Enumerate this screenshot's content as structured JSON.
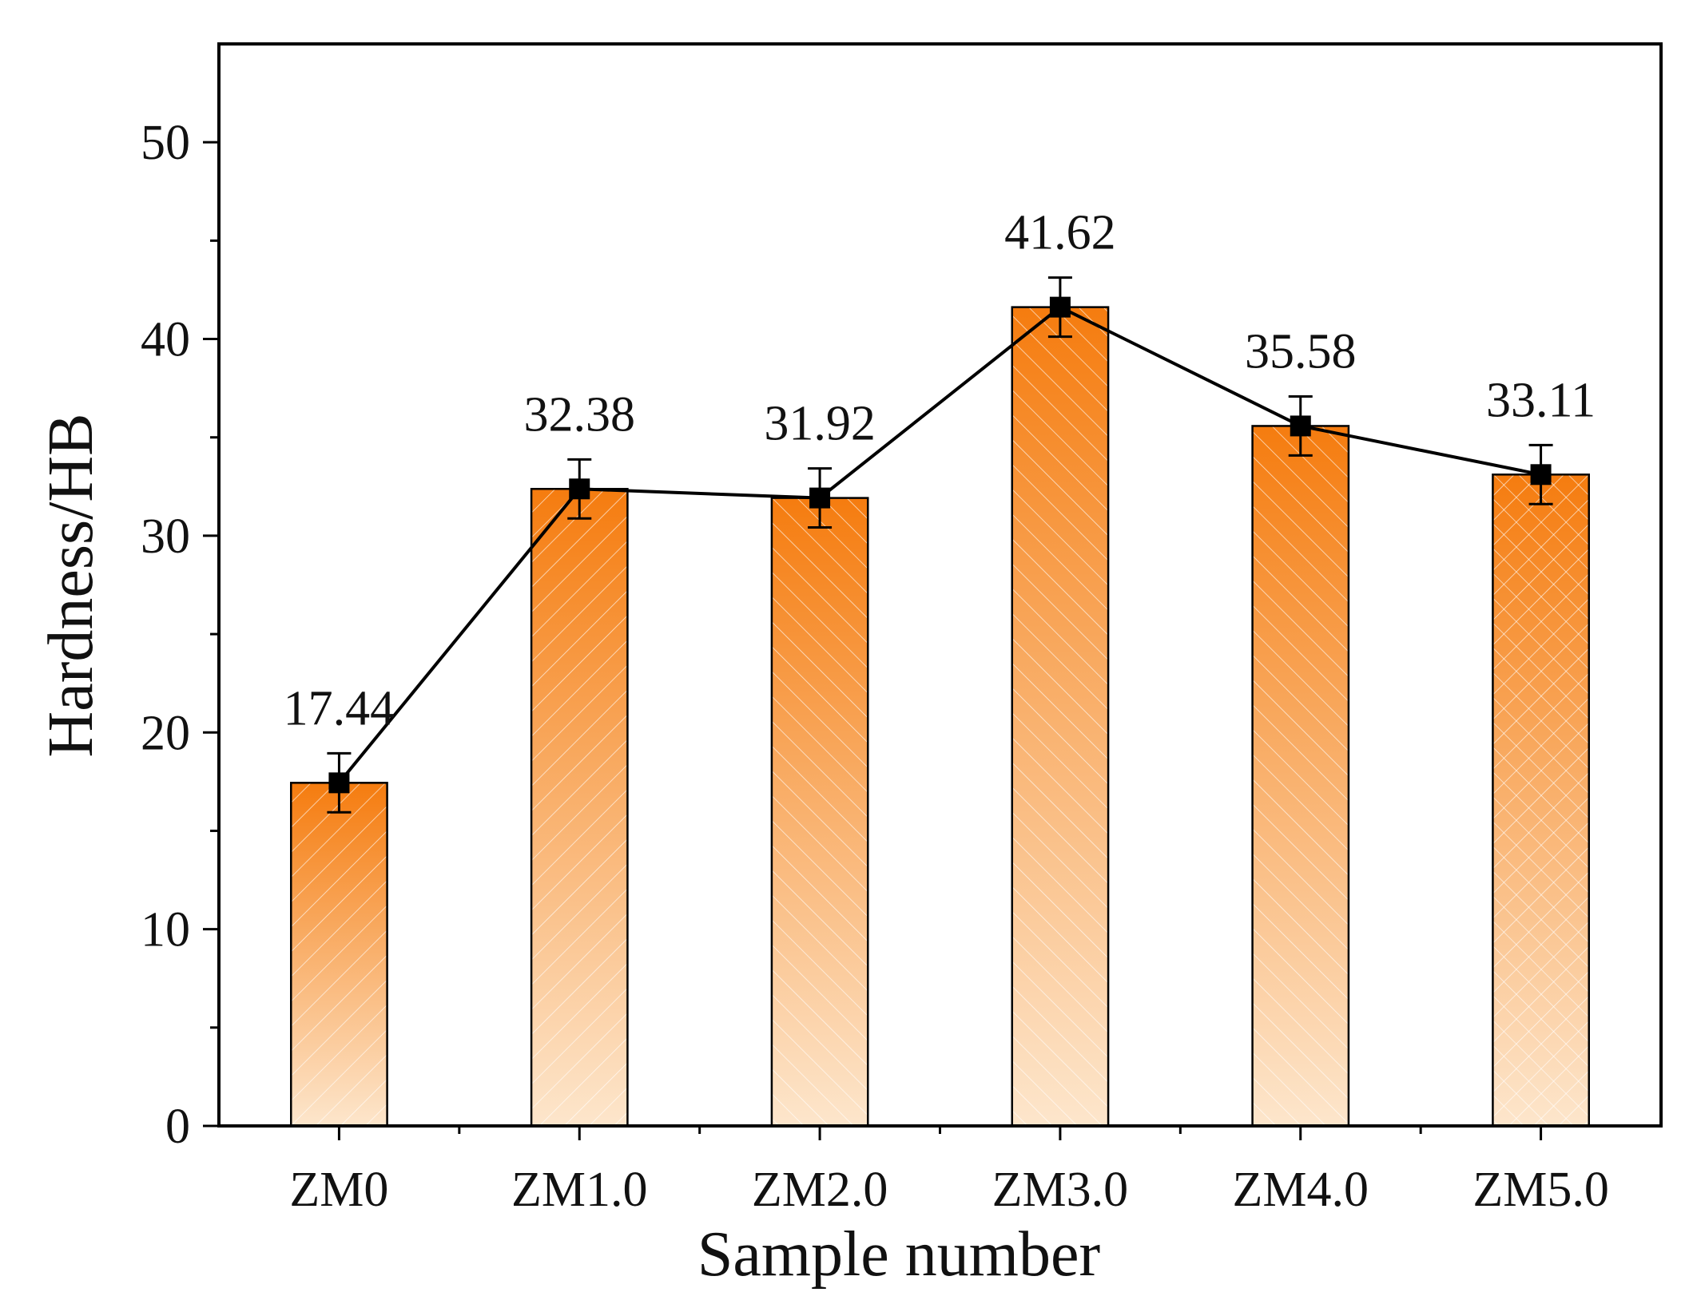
{
  "chart_data": {
    "type": "bar",
    "title": "",
    "xlabel": "Sample number",
    "ylabel": "Hardness/HB",
    "ylim": [
      0,
      55
    ],
    "y_major_ticks": [
      0,
      10,
      20,
      30,
      40,
      50
    ],
    "y_minor_step": 5,
    "categories": [
      "ZM0",
      "ZM1.0",
      "ZM2.0",
      "ZM3.0",
      "ZM4.0",
      "ZM5.0"
    ],
    "values": [
      17.44,
      32.38,
      31.92,
      41.62,
      35.58,
      33.11
    ],
    "value_labels": [
      "17.44",
      "32.38",
      "31.92",
      "41.62",
      "35.58",
      "33.11"
    ],
    "error": [
      1.5,
      1.5,
      1.5,
      1.5,
      1.5,
      1.5
    ],
    "patterns": [
      "diag-right",
      "diag-right",
      "diag-left",
      "diag-left",
      "diag-left",
      "crosshatch"
    ],
    "overlay_line": true,
    "grid": false,
    "colors": {
      "bar_top": "#f57c0f",
      "bar_bottom": "#fde6cc",
      "line": "#000000",
      "marker": "#000000",
      "pattern_stroke": "#ffffff"
    }
  }
}
